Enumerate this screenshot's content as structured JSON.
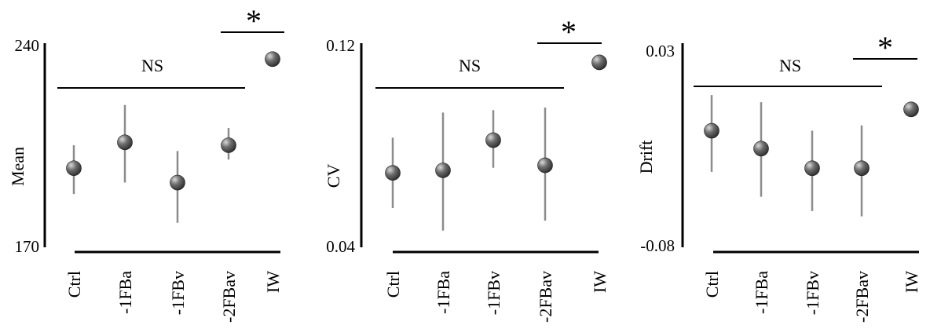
{
  "colors": {
    "axis": "#000000",
    "errorbar": "#8c8c8c",
    "marker_highlight": "#d9d9d9",
    "marker_mid": "#6e6e6e",
    "marker_dark": "#2e2e2e"
  },
  "chart_data": [
    {
      "type": "scatter",
      "title": "",
      "xlabel": "",
      "ylabel": "Mean",
      "ylim": [
        170,
        240
      ],
      "ytick_labels": [
        "240",
        "170"
      ],
      "categories": [
        "Ctrl",
        "-1FBa",
        "-1FBv",
        "-2FBav",
        "IW"
      ],
      "values": [
        197,
        206,
        192,
        205,
        235
      ],
      "error_low": [
        188,
        192,
        178,
        200,
        null
      ],
      "error_high": [
        205,
        219,
        203,
        211,
        null
      ],
      "annotations": {
        "ns_label": "NS",
        "sig_label": "*"
      },
      "grid": false,
      "legend": "none"
    },
    {
      "type": "scatter",
      "title": "",
      "xlabel": "",
      "ylabel": "CV",
      "ylim": [
        0.04,
        0.12
      ],
      "ytick_labels": [
        "0.12",
        "0.04"
      ],
      "categories": [
        "Ctrl",
        "-1FBa",
        "-1FBv",
        "-2FBav",
        "IW"
      ],
      "values": [
        0.069,
        0.07,
        0.082,
        0.072,
        0.113
      ],
      "error_low": [
        0.055,
        0.046,
        0.071,
        0.05,
        null
      ],
      "error_high": [
        0.083,
        0.093,
        0.094,
        0.095,
        null
      ],
      "annotations": {
        "ns_label": "NS",
        "sig_label": "*"
      },
      "grid": false,
      "legend": "none"
    },
    {
      "type": "scatter",
      "title": "",
      "xlabel": "",
      "ylabel": "Drift",
      "ylim": [
        -0.08,
        0.03
      ],
      "ytick_labels": [
        "0.03",
        "-0.08"
      ],
      "categories": [
        "Ctrl",
        "-1FBa",
        "-1FBv",
        "-2FBav",
        "IW"
      ],
      "values": [
        -0.016,
        -0.026,
        -0.037,
        -0.037,
        -0.004
      ],
      "error_low": [
        -0.039,
        -0.053,
        -0.061,
        -0.064,
        null
      ],
      "error_high": [
        0.004,
        0.0,
        -0.016,
        -0.013,
        null
      ],
      "annotations": {
        "ns_label": "NS",
        "sig_label": "*"
      },
      "grid": false,
      "legend": "none"
    }
  ]
}
